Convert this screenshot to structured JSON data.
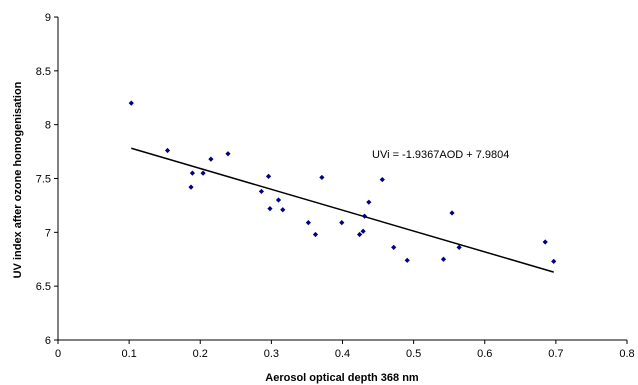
{
  "chart_data": {
    "type": "scatter",
    "title": "",
    "xlabel": "Aerosol optical depth 368 nm",
    "ylabel": "UV index after ozone homogenisation",
    "xlim": [
      0,
      0.8
    ],
    "ylim": [
      6,
      9
    ],
    "xticks": [
      0,
      0.1,
      0.2,
      0.3,
      0.4,
      0.5,
      0.6,
      0.7,
      0.8
    ],
    "yticks": [
      6,
      6.5,
      7,
      7.5,
      8,
      8.5,
      9
    ],
    "xtick_labels": [
      "0",
      "0.1",
      "0.2",
      "0.3",
      "0.4",
      "0.5",
      "0.6",
      "0.7",
      "0.8"
    ],
    "ytick_labels": [
      "6",
      "6.5",
      "7",
      "7.5",
      "8",
      "8.5",
      "9"
    ],
    "grid": false,
    "legend": "none",
    "marker_color": "#000080",
    "series": [
      {
        "x": [
          0.103,
          0.154,
          0.187,
          0.189,
          0.204,
          0.215,
          0.239,
          0.286,
          0.296,
          0.298,
          0.31,
          0.316,
          0.352,
          0.362,
          0.371,
          0.399,
          0.424,
          0.429,
          0.431,
          0.437,
          0.456,
          0.472,
          0.491,
          0.542,
          0.554,
          0.564,
          0.685,
          0.697
        ],
        "y": [
          8.2,
          7.76,
          7.42,
          7.55,
          7.55,
          7.68,
          7.73,
          7.38,
          7.52,
          7.22,
          7.3,
          7.21,
          7.09,
          6.98,
          7.51,
          7.09,
          6.98,
          7.01,
          7.15,
          7.28,
          7.49,
          6.86,
          6.74,
          6.75,
          7.18,
          6.86,
          6.91,
          6.73
        ]
      }
    ],
    "trendline": {
      "slope": -1.9367,
      "intercept": 7.9804,
      "x_range": [
        0.103,
        0.697
      ],
      "color": "#000000"
    },
    "annotation": "UVi = -1.9367AOD + 7.9804"
  }
}
